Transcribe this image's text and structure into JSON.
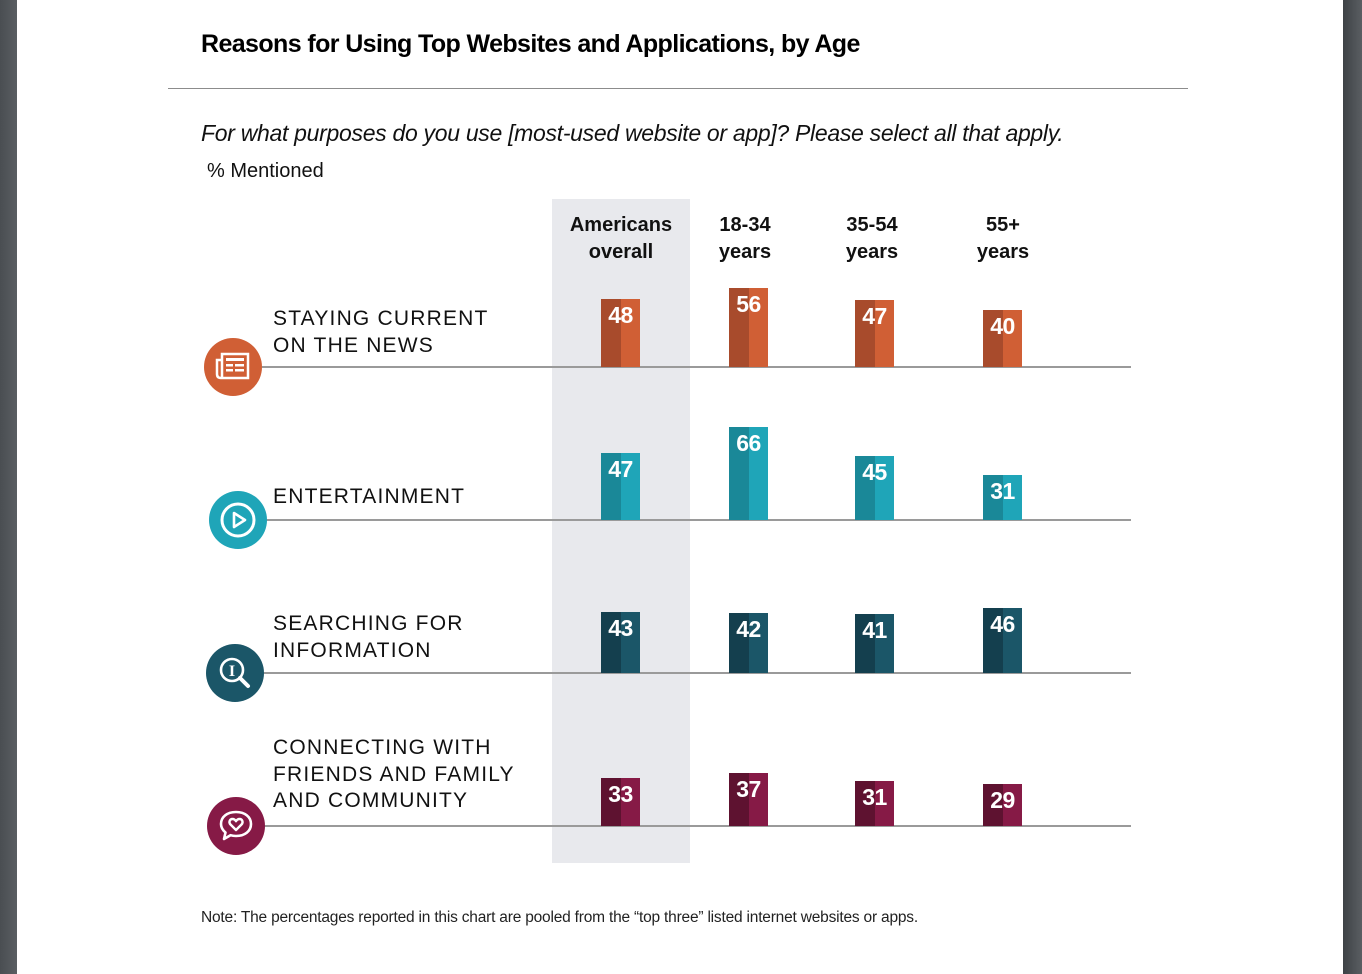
{
  "title": "Reasons for Using Top Websites and Applications, by Age",
  "question": "For what purposes do you use [most-used website or app]? Please select all that apply.",
  "unit_label": "% Mentioned",
  "note": "Note: The percentages reported in this chart are pooled from the “top three” listed internet websites or apps.",
  "columns": [
    {
      "line1": "Americans",
      "line2": "overall",
      "highlighted": true
    },
    {
      "line1": "18-34",
      "line2": "years"
    },
    {
      "line1": "35-54",
      "line2": "years"
    },
    {
      "line1": "55+",
      "line2": "years"
    }
  ],
  "rows": [
    {
      "lines": [
        "STAYING CURRENT",
        "ON THE NEWS"
      ],
      "icon": "newspaper-icon",
      "color_dark": "#a84b2c",
      "color_light": "#d05f35"
    },
    {
      "lines": [
        "ENTERTAINMENT"
      ],
      "icon": "play-icon",
      "color_dark": "#1a8898",
      "color_light": "#1fa5b8"
    },
    {
      "lines": [
        "SEARCHING FOR",
        "INFORMATION"
      ],
      "icon": "search-info-icon",
      "color_dark": "#143f4e",
      "color_light": "#1b5668"
    },
    {
      "lines": [
        "CONNECTING WITH",
        "FRIENDS AND FAMILY",
        "AND COMMUNITY"
      ],
      "icon": "chat-heart-icon",
      "color_dark": "#5e1230",
      "color_light": "#861a46"
    }
  ],
  "chart_data": {
    "type": "bar",
    "title": "Reasons for Using Top Websites and Applications, by Age",
    "subtitle": "For what purposes do you use [most-used website or app]? Please select all that apply.",
    "ylabel": "% Mentioned",
    "xlabel": "",
    "categories": [
      "Americans overall",
      "18-34 years",
      "35-54 years",
      "55+ years"
    ],
    "series": [
      {
        "name": "Staying current on the news",
        "values": [
          48,
          56,
          47,
          40
        ]
      },
      {
        "name": "Entertainment",
        "values": [
          47,
          66,
          45,
          31
        ]
      },
      {
        "name": "Searching for information",
        "values": [
          43,
          42,
          41,
          46
        ]
      },
      {
        "name": "Connecting with friends and family and community",
        "values": [
          33,
          37,
          31,
          29
        ]
      }
    ],
    "ylim": [
      0,
      100
    ],
    "grid": false,
    "legend": "none",
    "highlighted_category": "Americans overall"
  }
}
